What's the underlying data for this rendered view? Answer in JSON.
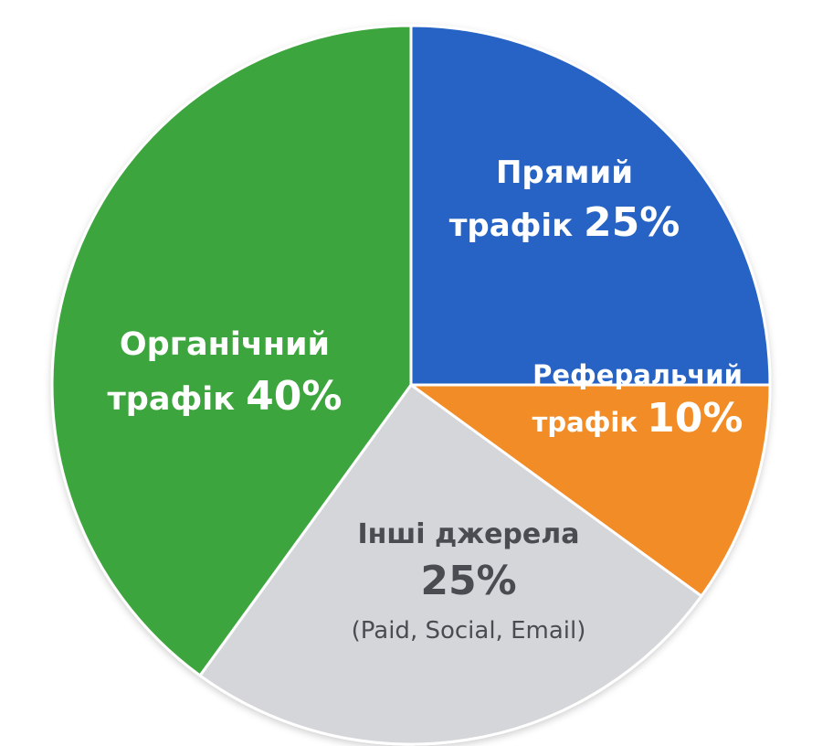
{
  "chart_data": {
    "type": "pie",
    "title": "",
    "start_angle_deg": 0,
    "direction": "clockwise",
    "slices": [
      {
        "key": "direct",
        "label_lines": [
          "Прямий",
          "трафік"
        ],
        "value": 25,
        "value_text": "25%",
        "note": "",
        "color": "#2563c4",
        "label_color": "#ffffff"
      },
      {
        "key": "referral",
        "label_lines": [
          "Реферальчий",
          "трафік"
        ],
        "value": 10,
        "value_text": "10%",
        "note": "",
        "color": "#f28c28",
        "label_color": "#ffffff"
      },
      {
        "key": "other",
        "label_lines": [
          "Інші джерела"
        ],
        "value": 25,
        "value_text": "25%",
        "note": "(Paid, Social, Email)",
        "color": "#d5d6da",
        "label_color": "#4a4c52"
      },
      {
        "key": "organic",
        "label_lines": [
          "Органічний",
          "трафік"
        ],
        "value": 40,
        "value_text": "40%",
        "note": "",
        "color": "#3ea53e",
        "label_color": "#ffffff"
      }
    ]
  }
}
